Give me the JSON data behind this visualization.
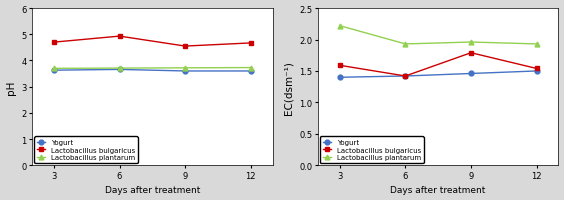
{
  "x": [
    3,
    6,
    9,
    12
  ],
  "ph": {
    "yogurt": [
      3.63,
      3.66,
      3.6,
      3.6
    ],
    "bulgaricus": [
      4.7,
      4.93,
      4.55,
      4.67
    ],
    "plantarum": [
      3.7,
      3.71,
      3.72,
      3.73
    ]
  },
  "ec": {
    "yogurt": [
      1.4,
      1.42,
      1.46,
      1.5
    ],
    "bulgaricus": [
      1.59,
      1.42,
      1.79,
      1.54
    ],
    "plantarum": [
      2.22,
      1.93,
      1.96,
      1.93
    ]
  },
  "colors": {
    "yogurt": "#4472C4",
    "bulgaricus": "#CC0000",
    "plantarum": "#92D050"
  },
  "markers": {
    "yogurt": "o",
    "bulgaricus": "s",
    "plantarum": "^"
  },
  "legend_labels": [
    "Yogurt",
    "Lactobacillus bulgaricus",
    "Lactobacillus plantarum"
  ],
  "ph_ylabel": "pH",
  "ec_ylabel": "EC(dsm⁻¹)",
  "xlabel": "Days after treatment",
  "ph_ylim": [
    0,
    6
  ],
  "ec_ylim": [
    0,
    2.5
  ],
  "ph_yticks": [
    0,
    1,
    2,
    3,
    4,
    5,
    6
  ],
  "ec_yticks": [
    0,
    0.5,
    1.0,
    1.5,
    2.0,
    2.5
  ],
  "outer_bg": "#d9d9d9",
  "plot_bg": "#ffffff"
}
